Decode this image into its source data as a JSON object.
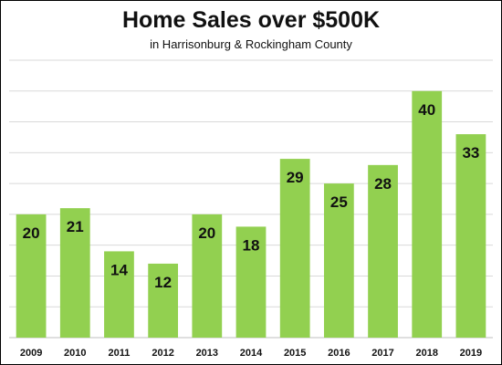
{
  "chart_data": {
    "type": "bar",
    "title": "Home Sales over $500K",
    "subtitle": "in Harrisonburg & Rockingham County",
    "xlabel": "",
    "ylabel": "",
    "categories": [
      "2009",
      "2010",
      "2011",
      "2012",
      "2013",
      "2014",
      "2015",
      "2016",
      "2017",
      "2018",
      "2019"
    ],
    "values": [
      20,
      21,
      14,
      12,
      20,
      18,
      29,
      25,
      28,
      40,
      33
    ],
    "ylim": [
      0,
      45
    ],
    "grid": true,
    "legend": "none",
    "colors": {
      "bar": "#92d050",
      "grid": "#d9d9d9",
      "axis": "#bfbfbf"
    }
  }
}
